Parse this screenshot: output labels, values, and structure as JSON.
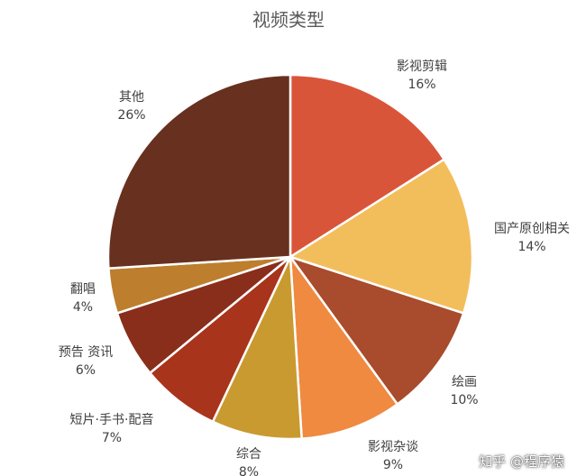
{
  "chart_data": {
    "type": "pie",
    "title": "视频类型",
    "start_angle_deg": 0,
    "direction": "clockwise",
    "unit": "%",
    "slices": [
      {
        "label": "影视剪辑",
        "value": 16,
        "color": "#D9553A"
      },
      {
        "label": "国产原创相关",
        "value": 14,
        "color": "#F2BE5C"
      },
      {
        "label": "绘画",
        "value": 10,
        "color": "#A84C2D"
      },
      {
        "label": "影视杂谈",
        "value": 9,
        "color": "#EF8A40"
      },
      {
        "label": "综合",
        "value": 8,
        "color": "#C99A30"
      },
      {
        "label": "短片·手书·配音",
        "value": 7,
        "color": "#A8341C"
      },
      {
        "label": "预告 资讯",
        "value": 6,
        "color": "#8A2E1C"
      },
      {
        "label": "翻唱",
        "value": 4,
        "color": "#BD7E2E"
      },
      {
        "label": "其他",
        "value": 26,
        "color": "#68301E"
      }
    ]
  },
  "watermark": "知乎 @程序猿"
}
